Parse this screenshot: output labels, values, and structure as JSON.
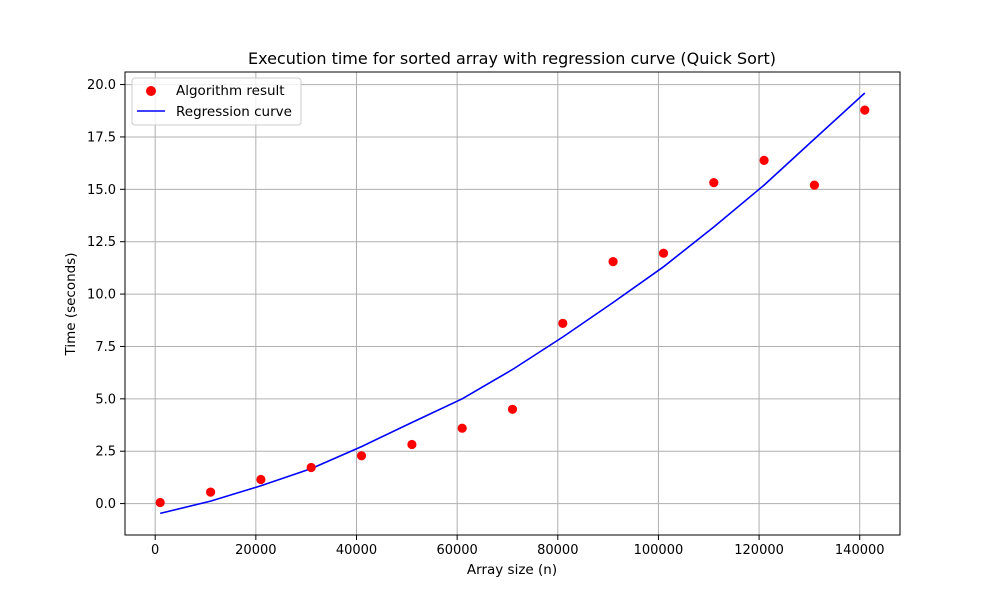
{
  "chart_data": {
    "type": "scatter",
    "title": "Execution time for sorted array with regression curve (Quick Sort)",
    "xlabel": "Array size (n)",
    "ylabel": "Time (seconds)",
    "xlim": [
      -6000,
      148000
    ],
    "ylim": [
      -1.5,
      20.6
    ],
    "xticks": [
      0,
      20000,
      40000,
      60000,
      80000,
      100000,
      120000,
      140000
    ],
    "yticks": [
      0.0,
      2.5,
      5.0,
      7.5,
      10.0,
      12.5,
      15.0,
      17.5,
      20.0
    ],
    "xtick_labels": [
      "0",
      "20000",
      "40000",
      "60000",
      "80000",
      "100000",
      "120000",
      "140000"
    ],
    "ytick_labels": [
      "0.0",
      "2.5",
      "5.0",
      "7.5",
      "10.0",
      "12.5",
      "15.0",
      "17.5",
      "20.0"
    ],
    "grid": true,
    "legend_position": "top-left",
    "series": [
      {
        "name": "Algorithm result",
        "kind": "scatter",
        "color": "#ff0000",
        "x": [
          1000,
          11000,
          21000,
          31000,
          41000,
          51000,
          61000,
          71000,
          81000,
          91000,
          101000,
          111000,
          121000,
          131000,
          141000
        ],
        "y": [
          0.05,
          0.55,
          1.15,
          1.72,
          2.28,
          2.82,
          3.6,
          4.5,
          8.6,
          11.55,
          11.95,
          15.32,
          16.38,
          15.2,
          18.78
        ]
      },
      {
        "name": "Regression curve",
        "kind": "line",
        "color": "#0000ff",
        "x": [
          1000,
          11000,
          21000,
          31000,
          41000,
          51000,
          61000,
          71000,
          81000,
          91000,
          101000,
          111000,
          121000,
          131000,
          141000
        ],
        "y": [
          -0.47,
          0.12,
          0.85,
          1.67,
          2.72,
          3.87,
          5.0,
          6.4,
          7.95,
          9.6,
          11.3,
          13.2,
          15.2,
          17.4,
          19.6
        ]
      }
    ]
  }
}
